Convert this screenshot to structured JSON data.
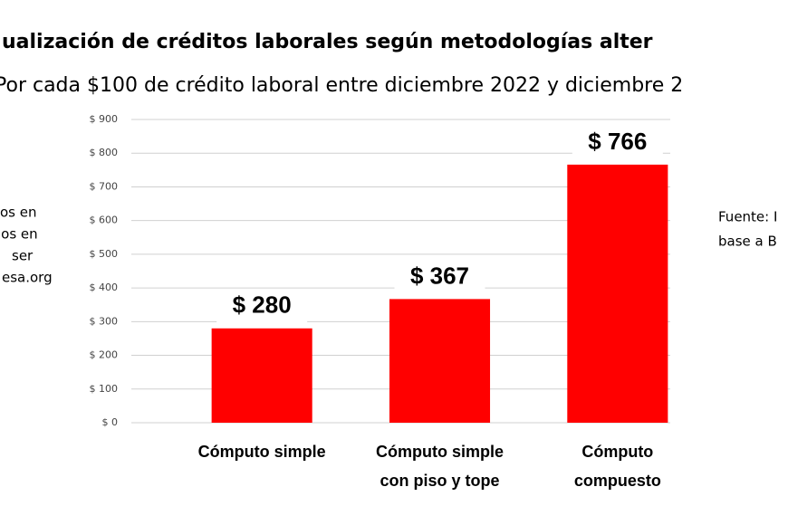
{
  "chart_data": {
    "type": "bar",
    "title": "ualización de créditos laborales según metodologías alter",
    "subtitle": "Por cada $100 de crédito laboral entre diciembre 2022 y diciembre 2",
    "categories": [
      [
        "Cómputo simple"
      ],
      [
        "Cómputo simple",
        "con piso y tope"
      ],
      [
        "Cómputo",
        "compuesto"
      ]
    ],
    "values": [
      280,
      367,
      766
    ],
    "value_labels": [
      "$ 280",
      "$ 367",
      "$ 766"
    ],
    "color": "#ff0000",
    "ylim": [
      0,
      900
    ],
    "yticks": [
      {
        "value": 0,
        "label": "$ 0"
      },
      {
        "value": 100,
        "label": "$ 100"
      },
      {
        "value": 200,
        "label": "$ 200"
      },
      {
        "value": 300,
        "label": "$ 300"
      },
      {
        "value": 400,
        "label": "$ 400"
      },
      {
        "value": 500,
        "label": "$ 500"
      },
      {
        "value": 600,
        "label": "$ 600"
      },
      {
        "value": 700,
        "label": "$ 700"
      },
      {
        "value": 800,
        "label": "$ 800"
      },
      {
        "value": 900,
        "label": "$ 900"
      }
    ],
    "grid": true,
    "left_note": [
      "os en",
      "los en",
      "ser",
      "esa.org"
    ],
    "right_note": [
      "Fuente: I",
      "base a B"
    ]
  }
}
